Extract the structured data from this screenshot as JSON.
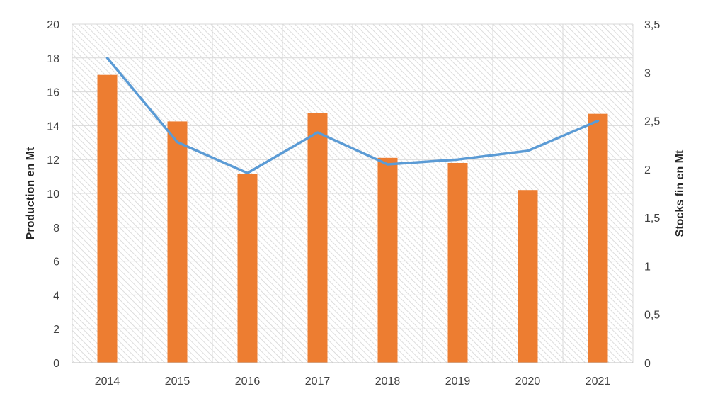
{
  "chart_data": {
    "type": "bar",
    "title": "",
    "categories": [
      "2014",
      "2015",
      "2016",
      "2017",
      "2018",
      "2019",
      "2020",
      "2021"
    ],
    "series": [
      {
        "type": "bar",
        "axis": "left",
        "color": "#ED7D31",
        "values": [
          17.0,
          14.25,
          11.15,
          14.75,
          12.1,
          11.8,
          10.2,
          14.7
        ]
      },
      {
        "type": "line",
        "axis": "right",
        "color": "#5B9BD5",
        "values": [
          3.15,
          2.28,
          1.96,
          2.38,
          2.05,
          2.1,
          2.19,
          2.5
        ]
      }
    ],
    "y_left": {
      "label": "Production en Mt",
      "range": [
        0,
        20
      ],
      "ticks": [
        "0",
        "2",
        "4",
        "6",
        "8",
        "10",
        "12",
        "14",
        "16",
        "18",
        "20"
      ]
    },
    "y_right": {
      "label": "Stocks fin en Mt",
      "range": [
        0,
        3.5
      ],
      "ticks": [
        "0",
        "0,5",
        "1",
        "1,5",
        "2",
        "2,5",
        "3",
        "3,5"
      ]
    },
    "grid": true,
    "plot_area_pattern": "diagonal-hatch"
  }
}
